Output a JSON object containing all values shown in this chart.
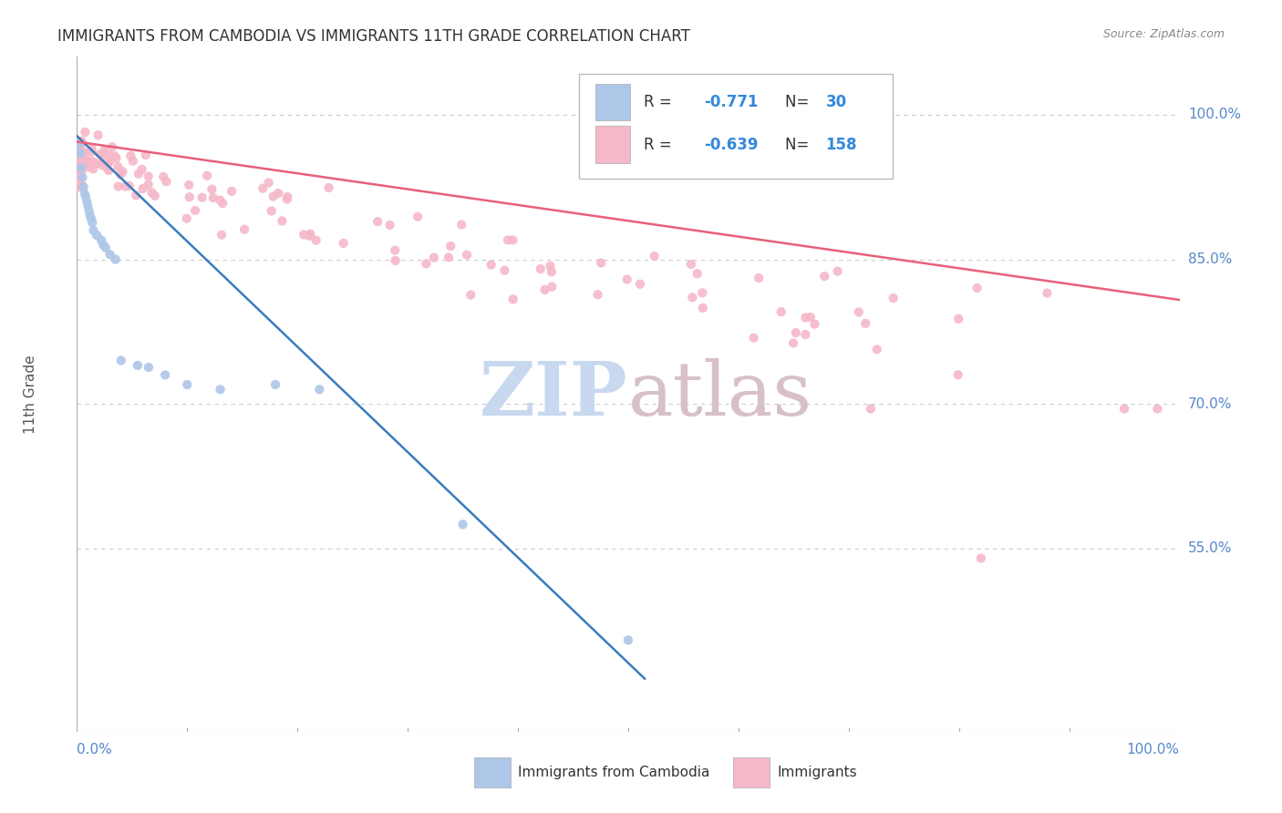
{
  "title": "IMMIGRANTS FROM CAMBODIA VS IMMIGRANTS 11TH GRADE CORRELATION CHART",
  "source_text": "Source: ZipAtlas.com",
  "ylabel": "11th Grade",
  "ytick_labels": [
    "100.0%",
    "85.0%",
    "70.0%",
    "55.0%"
  ],
  "ytick_positions": [
    1.0,
    0.85,
    0.7,
    0.55
  ],
  "legend_blue_label": "Immigrants from Cambodia",
  "legend_pink_label": "Immigrants",
  "legend_blue_R_val": "-0.771",
  "legend_blue_N_val": "30",
  "legend_pink_R_val": "-0.639",
  "legend_pink_N_val": "158",
  "blue_dot_color": "#aec6e8",
  "pink_dot_color": "#f5b8c8",
  "blue_line_color": "#3a7bbf",
  "pink_line_color": "#e8607a",
  "watermark_zip_color": "#c8d8ee",
  "watermark_atlas_color": "#d8c0c8",
  "background_color": "#ffffff",
  "grid_color": "#cccccc",
  "title_color": "#333333",
  "axis_label_color": "#555555",
  "tick_label_color": "#5588cc",
  "xlim": [
    0.0,
    1.0
  ],
  "ylim": [
    0.36,
    1.06
  ],
  "blue_line_x": [
    0.0,
    0.515
  ],
  "blue_line_y": [
    0.978,
    0.415
  ],
  "pink_line_x": [
    0.0,
    1.0
  ],
  "pink_line_y": [
    0.972,
    0.808
  ]
}
